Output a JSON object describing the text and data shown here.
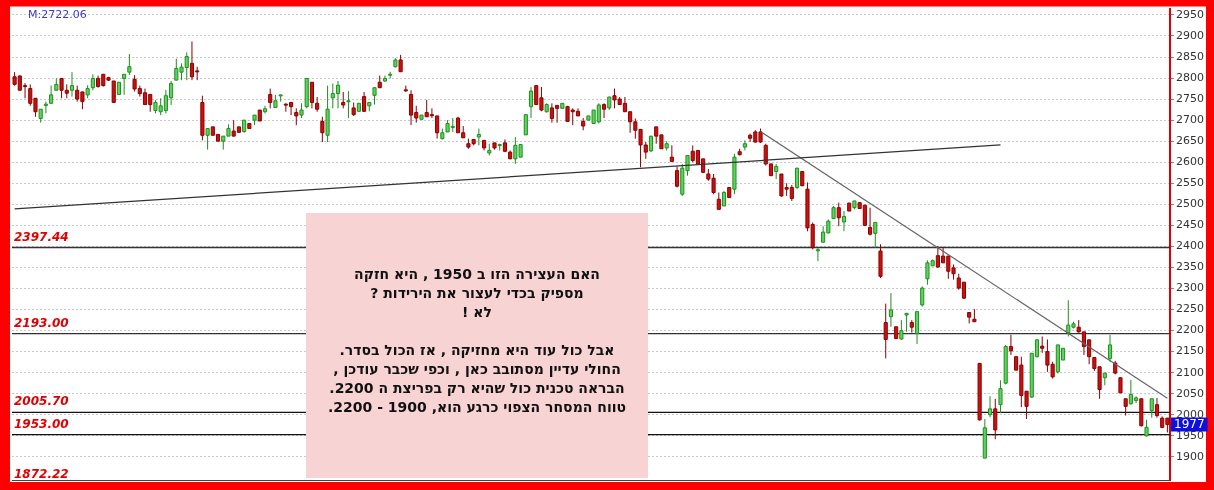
{
  "chart_data": {
    "type": "candlestick",
    "categories": [
      null,
      null,
      null,
      null,
      null,
      null,
      null,
      null,
      null,
      null,
      null,
      null,
      null,
      null,
      null,
      null,
      null,
      null,
      null,
      null,
      null,
      null,
      null,
      null,
      null,
      null,
      null,
      null,
      null,
      null,
      null,
      null,
      null,
      null,
      null,
      null,
      null,
      null,
      null,
      null,
      null,
      null,
      null,
      null,
      null,
      null,
      null,
      null,
      null,
      null,
      null,
      null,
      null,
      null,
      null,
      null,
      null,
      null,
      null,
      null,
      null,
      null,
      null,
      null,
      null,
      null,
      null,
      null,
      null,
      null,
      null,
      null,
      null,
      null,
      null,
      null,
      null,
      null,
      null,
      null,
      null,
      null,
      null,
      null,
      null,
      null,
      null,
      null,
      null,
      null,
      null,
      null,
      null,
      null,
      null,
      null,
      null,
      null,
      null,
      null,
      null,
      null,
      null,
      null,
      null,
      null,
      null,
      null,
      null,
      null,
      null,
      null,
      null,
      null,
      null,
      null,
      null,
      null,
      null,
      null,
      null,
      null,
      null,
      null,
      null,
      null,
      null,
      null,
      null,
      null,
      null,
      null,
      null,
      null,
      null,
      null,
      null,
      null,
      null,
      null,
      null,
      null,
      null,
      null,
      null,
      null,
      null,
      null,
      null,
      null,
      null,
      null,
      null,
      null,
      null,
      null,
      null,
      null,
      null,
      null,
      null,
      null,
      null,
      null,
      null,
      null,
      null,
      null,
      null,
      null,
      null,
      null,
      null,
      null,
      null,
      null,
      null,
      null,
      null,
      null,
      null,
      null,
      null,
      null,
      null,
      null,
      null,
      null,
      null,
      null,
      null,
      null,
      null,
      null,
      null,
      null,
      null,
      null,
      null,
      null,
      null,
      null,
      null,
      null,
      null,
      null,
      null,
      null,
      null,
      null,
      null,
      null,
      null,
      null,
      null,
      null,
      null,
      null,
      null,
      null,
      null,
      null
    ],
    "ylim": [
      1845,
      2965
    ],
    "yticks": [
      1900,
      1950,
      2000,
      2050,
      2100,
      2150,
      2200,
      2250,
      2300,
      2350,
      2400,
      2450,
      2500,
      2550,
      2600,
      2650,
      2700,
      2750,
      2800,
      2850,
      2900,
      2950
    ],
    "tick_labels": "y",
    "grid": "y",
    "ohlc": [
      [
        2803,
        2814,
        2782,
        2785
      ],
      [
        2805,
        2806,
        2771,
        2771
      ],
      [
        2782,
        2788,
        2752,
        2780
      ],
      [
        2775,
        2785,
        2734,
        2740
      ],
      [
        2752,
        2752,
        2708,
        2720
      ],
      [
        2704,
        2726,
        2694,
        2726
      ],
      [
        2735,
        2744,
        2716,
        2738
      ],
      [
        2740,
        2782,
        2740,
        2760
      ],
      [
        2771,
        2799,
        2771,
        2785
      ],
      [
        2799,
        2799,
        2752,
        2771
      ],
      [
        2771,
        2785,
        2752,
        2764
      ],
      [
        2771,
        2814,
        2756,
        2782
      ],
      [
        2771,
        2782,
        2744,
        2750
      ],
      [
        2767,
        2767,
        2726,
        2744
      ],
      [
        2760,
        2783,
        2752,
        2775
      ],
      [
        2777,
        2809,
        2771,
        2799
      ],
      [
        2799,
        2806,
        2777,
        2780
      ],
      [
        2809,
        2809,
        2780,
        2782
      ],
      [
        2801,
        2803,
        2793,
        2795
      ],
      [
        2793,
        2793,
        2742,
        2742
      ],
      [
        2761,
        2790,
        2761,
        2790
      ],
      [
        2799,
        2809,
        2760,
        2809
      ],
      [
        2814,
        2857,
        2807,
        2827
      ],
      [
        2797,
        2807,
        2768,
        2774
      ],
      [
        2775,
        2782,
        2756,
        2763
      ],
      [
        2765,
        2775,
        2737,
        2737
      ],
      [
        2761,
        2761,
        2720,
        2737
      ],
      [
        2723,
        2748,
        2716,
        2742
      ],
      [
        2720,
        2752,
        2712,
        2734
      ],
      [
        2723,
        2772,
        2716,
        2758
      ],
      [
        2753,
        2793,
        2736,
        2787
      ],
      [
        2795,
        2846,
        2795,
        2823
      ],
      [
        2814,
        2835,
        2795,
        2826
      ],
      [
        2825,
        2861,
        2795,
        2851
      ],
      [
        2835,
        2887,
        2795,
        2803
      ],
      [
        2817,
        2827,
        2795,
        2816
      ],
      [
        2742,
        2758,
        2652,
        2664
      ],
      [
        2664,
        2680,
        2630,
        2680
      ],
      [
        2684,
        2684,
        2664,
        2664
      ],
      [
        2666,
        2666,
        2650,
        2650
      ],
      [
        2650,
        2662,
        2630,
        2662
      ],
      [
        2662,
        2690,
        2662,
        2680
      ],
      [
        2674,
        2700,
        2662,
        2662
      ],
      [
        2684,
        2684,
        2671,
        2671
      ],
      [
        2673,
        2700,
        2670,
        2700
      ],
      [
        2692,
        2692,
        2680,
        2680
      ],
      [
        2700,
        2712,
        2688,
        2712
      ],
      [
        2724,
        2724,
        2698,
        2698
      ],
      [
        2720,
        2734,
        2716,
        2727
      ],
      [
        2761,
        2775,
        2728,
        2742
      ],
      [
        2730,
        2760,
        2729,
        2746
      ],
      [
        2759,
        2760,
        2744,
        2760
      ],
      [
        2738,
        2740,
        2720,
        2736
      ],
      [
        2742,
        2742,
        2712,
        2732
      ],
      [
        2718,
        2728,
        2688,
        2710
      ],
      [
        2712,
        2740,
        2705,
        2724
      ],
      [
        2732,
        2799,
        2728,
        2799
      ],
      [
        2790,
        2790,
        2728,
        2742
      ],
      [
        2740,
        2755,
        2720,
        2726
      ],
      [
        2697,
        2708,
        2648,
        2670
      ],
      [
        2664,
        2782,
        2648,
        2726
      ],
      [
        2753,
        2787,
        2728,
        2763
      ],
      [
        2763,
        2793,
        2728,
        2783
      ],
      [
        2742,
        2767,
        2728,
        2736
      ],
      [
        2745,
        2769,
        2705,
        2746
      ],
      [
        2729,
        2742,
        2710,
        2713
      ],
      [
        2721,
        2740,
        2721,
        2740
      ],
      [
        2756,
        2767,
        2720,
        2721
      ],
      [
        2734,
        2742,
        2721,
        2742
      ],
      [
        2759,
        2777,
        2737,
        2777
      ],
      [
        2790,
        2806,
        2777,
        2777
      ],
      [
        2793,
        2806,
        2791,
        2799
      ],
      [
        2808,
        2815,
        2799,
        2809
      ],
      [
        2827,
        2847,
        2825,
        2843
      ],
      [
        2843,
        2855,
        2815,
        2815
      ],
      [
        2772,
        2782,
        2767,
        2771
      ],
      [
        2761,
        2771,
        2688,
        2712
      ],
      [
        2718,
        2734,
        2694,
        2705
      ],
      [
        2702,
        2712,
        2702,
        2712
      ],
      [
        2718,
        2748,
        2708,
        2708
      ],
      [
        2713,
        2728,
        2705,
        2712
      ],
      [
        2710,
        2710,
        2656,
        2670
      ],
      [
        2656,
        2680,
        2654,
        2670
      ],
      [
        2672,
        2700,
        2672,
        2692
      ],
      [
        2684,
        2705,
        2672,
        2685
      ],
      [
        2705,
        2708,
        2670,
        2670
      ],
      [
        2670,
        2686,
        2658,
        2658
      ],
      [
        2644,
        2656,
        2632,
        2636
      ],
      [
        2654,
        2654,
        2640,
        2644
      ],
      [
        2660,
        2680,
        2640,
        2666
      ],
      [
        2652,
        2652,
        2628,
        2634
      ],
      [
        2622,
        2644,
        2616,
        2628
      ],
      [
        2646,
        2646,
        2630,
        2634
      ],
      [
        2641,
        2644,
        2628,
        2642
      ],
      [
        2646,
        2654,
        2624,
        2626
      ],
      [
        2624,
        2628,
        2608,
        2608
      ],
      [
        2608,
        2660,
        2596,
        2640
      ],
      [
        2612,
        2642,
        2612,
        2642
      ],
      [
        2665,
        2713,
        2665,
        2713
      ],
      [
        2732,
        2779,
        2705,
        2769
      ],
      [
        2782,
        2783,
        2737,
        2737
      ],
      [
        2753,
        2779,
        2721,
        2724
      ],
      [
        2720,
        2740,
        2718,
        2737
      ],
      [
        2729,
        2740,
        2694,
        2704
      ],
      [
        2735,
        2735,
        2694,
        2728
      ],
      [
        2728,
        2740,
        2728,
        2740
      ],
      [
        2732,
        2734,
        2697,
        2697
      ],
      [
        2724,
        2728,
        2688,
        2720
      ],
      [
        2721,
        2728,
        2710,
        2710
      ],
      [
        2697,
        2705,
        2676,
        2686
      ],
      [
        2700,
        2710,
        2700,
        2710
      ],
      [
        2692,
        2724,
        2692,
        2724
      ],
      [
        2696,
        2740,
        2692,
        2736
      ],
      [
        2737,
        2740,
        2705,
        2726
      ],
      [
        2729,
        2755,
        2724,
        2755
      ],
      [
        2758,
        2775,
        2728,
        2748
      ],
      [
        2750,
        2755,
        2737,
        2737
      ],
      [
        2740,
        2755,
        2720,
        2720
      ],
      [
        2720,
        2720,
        2670,
        2696
      ],
      [
        2696,
        2704,
        2656,
        2676
      ],
      [
        2678,
        2678,
        2588,
        2641
      ],
      [
        2641,
        2648,
        2608,
        2624
      ],
      [
        2627,
        2662,
        2624,
        2662
      ],
      [
        2684,
        2684,
        2644,
        2662
      ],
      [
        2665,
        2665,
        2632,
        2632
      ],
      [
        2634,
        2650,
        2628,
        2644
      ],
      [
        2612,
        2640,
        2602,
        2602
      ],
      [
        2580,
        2590,
        2540,
        2543
      ],
      [
        2524,
        2596,
        2520,
        2586
      ],
      [
        2580,
        2616,
        2568,
        2616
      ],
      [
        2626,
        2640,
        2600,
        2604
      ],
      [
        2628,
        2628,
        2596,
        2596
      ],
      [
        2608,
        2608,
        2574,
        2576
      ],
      [
        2572,
        2584,
        2556,
        2560
      ],
      [
        2562,
        2572,
        2524,
        2528
      ],
      [
        2512,
        2528,
        2488,
        2488
      ],
      [
        2496,
        2532,
        2496,
        2528
      ],
      [
        2540,
        2540,
        2516,
        2516
      ],
      [
        2536,
        2620,
        2524,
        2612
      ],
      [
        2625,
        2632,
        2616,
        2618
      ],
      [
        2636,
        2652,
        2628,
        2644
      ],
      [
        2664,
        2668,
        2648,
        2657
      ],
      [
        2672,
        2676,
        2646,
        2648
      ],
      [
        2672,
        2680,
        2646,
        2648
      ],
      [
        2640,
        2644,
        2592,
        2596
      ],
      [
        2596,
        2596,
        2568,
        2568
      ],
      [
        2578,
        2596,
        2560,
        2590
      ],
      [
        2572,
        2572,
        2518,
        2520
      ],
      [
        2540,
        2550,
        2520,
        2536
      ],
      [
        2540,
        2546,
        2508,
        2514
      ],
      [
        2540,
        2586,
        2536,
        2586
      ],
      [
        2578,
        2578,
        2544,
        2544
      ],
      [
        2536,
        2552,
        2436,
        2444
      ],
      [
        2452,
        2457,
        2393,
        2397
      ],
      [
        2391,
        2397,
        2365,
        2392
      ],
      [
        2410,
        2448,
        2409,
        2434
      ],
      [
        2432,
        2464,
        2431,
        2460
      ],
      [
        2466,
        2496,
        2465,
        2492
      ],
      [
        2492,
        2504,
        2448,
        2468
      ],
      [
        2458,
        2484,
        2436,
        2471
      ],
      [
        2503,
        2503,
        2484,
        2484
      ],
      [
        2492,
        2508,
        2488,
        2508
      ],
      [
        2504,
        2504,
        2490,
        2490
      ],
      [
        2498,
        2498,
        2450,
        2450
      ],
      [
        2445,
        2492,
        2426,
        2429
      ],
      [
        2431,
        2457,
        2397,
        2457
      ],
      [
        2389,
        2405,
        2325,
        2329
      ],
      [
        2219,
        2264,
        2134,
        2179
      ],
      [
        2233,
        2289,
        2209,
        2249
      ],
      [
        2209,
        2209,
        2181,
        2181
      ],
      [
        2180,
        2225,
        2178,
        2200
      ],
      [
        2237,
        2241,
        2197,
        2241
      ],
      [
        2219,
        2225,
        2195,
        2208
      ],
      [
        2193,
        2245,
        2168,
        2245
      ],
      [
        2261,
        2305,
        2257,
        2301
      ],
      [
        2323,
        2367,
        2309,
        2361
      ],
      [
        2354,
        2369,
        2353,
        2366
      ],
      [
        2378,
        2401,
        2349,
        2351
      ],
      [
        2377,
        2399,
        2361,
        2361
      ],
      [
        2377,
        2377,
        2323,
        2341
      ],
      [
        2349,
        2357,
        2321,
        2335
      ],
      [
        2325,
        2335,
        2297,
        2301
      ],
      [
        2315,
        2315,
        2275,
        2277
      ],
      [
        2243,
        2243,
        2217,
        2232
      ],
      [
        2227,
        2251,
        2221,
        2221
      ],
      [
        2122,
        2123,
        1986,
        1988
      ],
      [
        1897,
        1990,
        1897,
        1969
      ],
      [
        2000,
        2044,
        1994,
        2014
      ],
      [
        2014,
        2038,
        1942,
        1964
      ],
      [
        2024,
        2082,
        2004,
        2062
      ],
      [
        2075,
        2166,
        2072,
        2162
      ],
      [
        2162,
        2190,
        2142,
        2152
      ],
      [
        2138,
        2138,
        2106,
        2106
      ],
      [
        2118,
        2138,
        2018,
        2046
      ],
      [
        2056,
        2056,
        1990,
        2020
      ],
      [
        2042,
        2147,
        2040,
        2146
      ],
      [
        2138,
        2179,
        2136,
        2178
      ],
      [
        2163,
        2186,
        2147,
        2158
      ],
      [
        2150,
        2179,
        2102,
        2118
      ],
      [
        2120,
        2126,
        2086,
        2090
      ],
      [
        2102,
        2166,
        2098,
        2166
      ],
      [
        2130,
        2158,
        2130,
        2158
      ],
      [
        2195,
        2272,
        2186,
        2213
      ],
      [
        2208,
        2221,
        2205,
        2216
      ],
      [
        2208,
        2225,
        2195,
        2197
      ],
      [
        2197,
        2197,
        2142,
        2162
      ],
      [
        2178,
        2178,
        2120,
        2138
      ],
      [
        2136,
        2136,
        2104,
        2110
      ],
      [
        2114,
        2114,
        2038,
        2060
      ],
      [
        2088,
        2099,
        2070,
        2099
      ],
      [
        2134,
        2190,
        2126,
        2166
      ],
      [
        2123,
        2128,
        2096,
        2099
      ],
      [
        2088,
        2088,
        2052,
        2052
      ],
      [
        2038,
        2038,
        1998,
        2020
      ],
      [
        2026,
        2083,
        2024,
        2048
      ],
      [
        2034,
        2044,
        2028,
        2040
      ],
      [
        2038,
        2038,
        1972,
        1974
      ],
      [
        1950,
        1988,
        1948,
        1970
      ],
      [
        2010,
        2038,
        1993,
        2038
      ],
      [
        2024,
        2040,
        1993,
        1998
      ],
      [
        1992,
        1996,
        1968,
        1970
      ],
      [
        1992,
        1992,
        1958,
        1977
      ]
    ],
    "series": [
      {
        "type": "line",
        "values": [
          2489,
          null,
          null,
          null,
          null,
          null,
          null,
          null,
          null,
          null,
          null,
          null,
          null,
          null,
          null,
          null,
          null,
          null,
          null,
          null,
          null,
          null,
          null,
          null,
          null,
          null,
          null,
          null,
          null,
          null,
          null,
          null,
          null,
          null,
          null,
          null,
          null,
          null,
          null,
          null,
          null,
          null,
          null,
          null,
          null,
          null,
          null,
          null,
          null,
          null,
          null,
          null,
          null,
          null,
          null,
          null,
          null,
          null,
          null,
          null,
          null,
          null,
          null,
          null,
          null,
          null,
          null,
          null,
          null,
          null,
          null,
          null,
          null,
          null,
          null,
          null,
          null,
          null,
          null,
          null,
          null,
          null,
          null,
          null,
          null,
          null,
          null,
          null,
          null,
          null,
          null,
          null,
          null,
          null,
          null,
          null,
          null,
          null,
          null,
          null,
          null,
          null,
          null,
          null,
          null,
          null,
          null,
          null,
          null,
          null,
          null,
          null,
          null,
          null,
          null,
          null,
          null,
          null,
          null,
          null,
          null,
          null,
          null,
          null,
          null,
          null,
          null,
          null,
          null,
          null,
          null,
          null,
          null,
          null,
          null,
          null,
          null,
          null,
          null,
          null,
          null,
          null,
          null,
          null,
          null,
          null,
          null,
          null,
          null,
          null,
          null,
          null,
          null,
          null,
          null,
          null,
          null,
          null,
          null,
          null,
          null,
          null,
          null,
          null,
          null,
          null,
          null,
          null,
          null,
          null,
          null,
          null,
          null,
          null,
          null,
          null,
          null,
          null,
          null,
          null,
          null,
          null,
          null,
          null,
          null,
          null,
          null,
          null,
          null,
          2641,
          null,
          null,
          null,
          null,
          null,
          null,
          null,
          null,
          null,
          null,
          null,
          null,
          null,
          null,
          null,
          null,
          null,
          null,
          null,
          null,
          null,
          null,
          null,
          null,
          null,
          null,
          null,
          null,
          null,
          null,
          null,
          null
        ],
        "color": "#333333"
      },
      {
        "type": "line",
        "values": [
          null,
          null,
          null,
          null,
          null,
          null,
          null,
          null,
          null,
          null,
          null,
          null,
          null,
          null,
          null,
          null,
          null,
          null,
          null,
          null,
          null,
          null,
          null,
          null,
          null,
          null,
          null,
          null,
          null,
          null,
          null,
          null,
          null,
          null,
          null,
          null,
          null,
          null,
          null,
          null,
          null,
          null,
          null,
          null,
          null,
          null,
          null,
          null,
          null,
          null,
          null,
          null,
          null,
          null,
          null,
          null,
          null,
          null,
          null,
          null,
          null,
          null,
          null,
          null,
          null,
          null,
          null,
          null,
          null,
          null,
          null,
          null,
          null,
          null,
          null,
          null,
          null,
          null,
          null,
          null,
          null,
          null,
          null,
          null,
          null,
          null,
          null,
          null,
          null,
          null,
          null,
          null,
          null,
          null,
          null,
          null,
          null,
          null,
          null,
          null,
          null,
          null,
          null,
          null,
          null,
          null,
          null,
          null,
          null,
          null,
          null,
          null,
          null,
          null,
          null,
          null,
          null,
          null,
          null,
          null,
          null,
          null,
          null,
          null,
          null,
          null,
          null,
          null,
          null,
          null,
          null,
          null,
          null,
          null,
          null,
          null,
          null,
          null,
          null,
          null,
          null,
          null,
          null,
          2673,
          null,
          null,
          null,
          null,
          null,
          null,
          null,
          null,
          null,
          null,
          null,
          null,
          null,
          null,
          null,
          null,
          null,
          null,
          null,
          null,
          null,
          null,
          null,
          null,
          null,
          null,
          null,
          null,
          null,
          null,
          null,
          null,
          null,
          null,
          null,
          null,
          null,
          null,
          null,
          null,
          null,
          null,
          null,
          null,
          null,
          null,
          null,
          null,
          null,
          null,
          null,
          null,
          null,
          null,
          null,
          null,
          null,
          null,
          null,
          null,
          null,
          null,
          null,
          null,
          null,
          null,
          null,
          null,
          null,
          null,
          null,
          null,
          null,
          null,
          null,
          null,
          null,
          2039
        ],
        "color": "#666666"
      }
    ],
    "ref_lines": [
      {
        "axis": "y",
        "value": 2397.44,
        "label": "2397.44",
        "color": "#333333"
      },
      {
        "axis": "y",
        "value": 2193.0,
        "label": "2193.00",
        "color": "#333333"
      },
      {
        "axis": "y",
        "value": 2005.7,
        "label": "2005.70",
        "color": "#111111"
      },
      {
        "axis": "y",
        "value": 1953.0,
        "label": "1953.00",
        "color": "#111111"
      }
    ],
    "annotations": [
      "M:2722.06",
      "1872.22",
      {
        "text": "1977",
        "y": 1977
      },
      "האם  העצירה  הזו  ב  1950 ,  היא  חזקה",
      "מספיק  בכדי  לעצור  את  הירידות  ?",
      "לא !",
      "אבל  כול  עוד  היא  מחזיקה  ,  אז  הכול  בסדר.",
      "החולי  עדיין  מסתובב  כאן , וכפי  שכבר  עודכן  ,",
      "הבראה  טכנית  כול  שהיא   רק  בפריצת  ה  2200.",
      "טווח  המסחר  הצפוי   כרגע  הוא,  1900  -  2200."
    ]
  }
}
